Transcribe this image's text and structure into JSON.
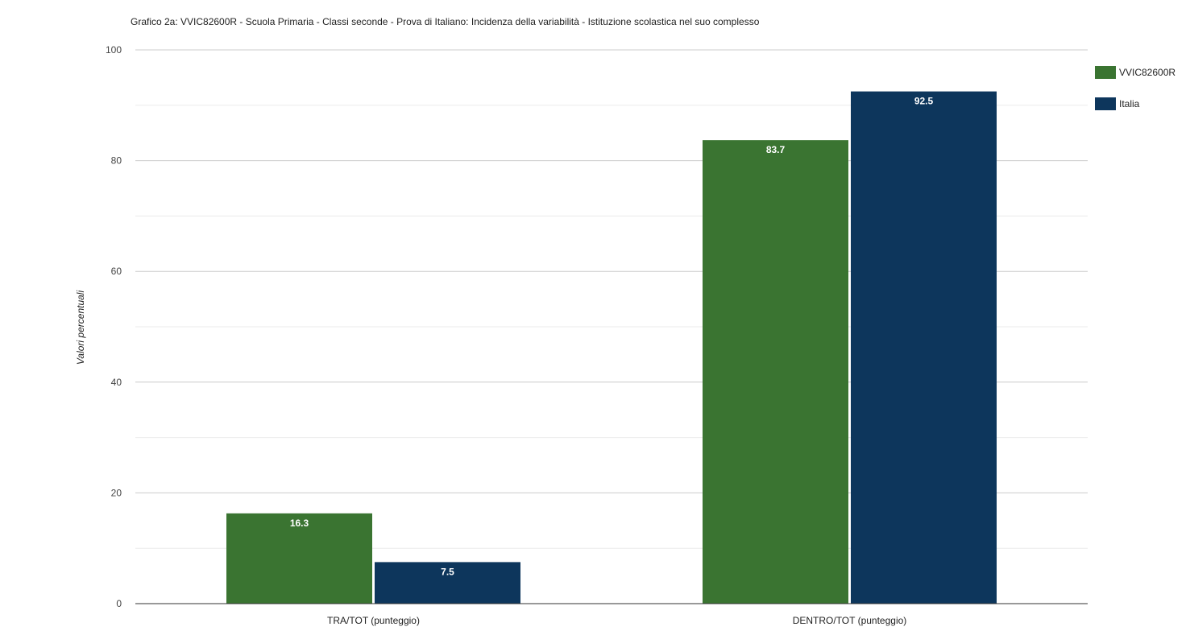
{
  "chart_data": {
    "type": "bar",
    "title": "Grafico 2a: VVIC82600R - Scuola Primaria - Classi seconde - Prova di Italiano: Incidenza della variabilità - Istituzione scolastica nel suo complesso",
    "xlabel": "",
    "ylabel": "Valori percentuali",
    "categories": [
      "TRA/TOT (punteggio)",
      "DENTRO/TOT (punteggio)"
    ],
    "series": [
      {
        "name": "VVIC82600R",
        "color": "#3a7431",
        "values": [
          16.3,
          83.7
        ],
        "labels": [
          "16.3",
          "83.7"
        ]
      },
      {
        "name": "Italia",
        "color": "#0d365c",
        "values": [
          7.5,
          92.5
        ],
        "labels": [
          "7.5",
          "92.5"
        ]
      }
    ],
    "ylim": [
      0,
      100
    ],
    "yticks": [
      0,
      20,
      40,
      60,
      80,
      100
    ],
    "ytick_labels": [
      "0",
      "20",
      "40",
      "60",
      "80",
      "100"
    ],
    "minor_gridlines": true,
    "grid": true,
    "legend_position": "top-right"
  }
}
